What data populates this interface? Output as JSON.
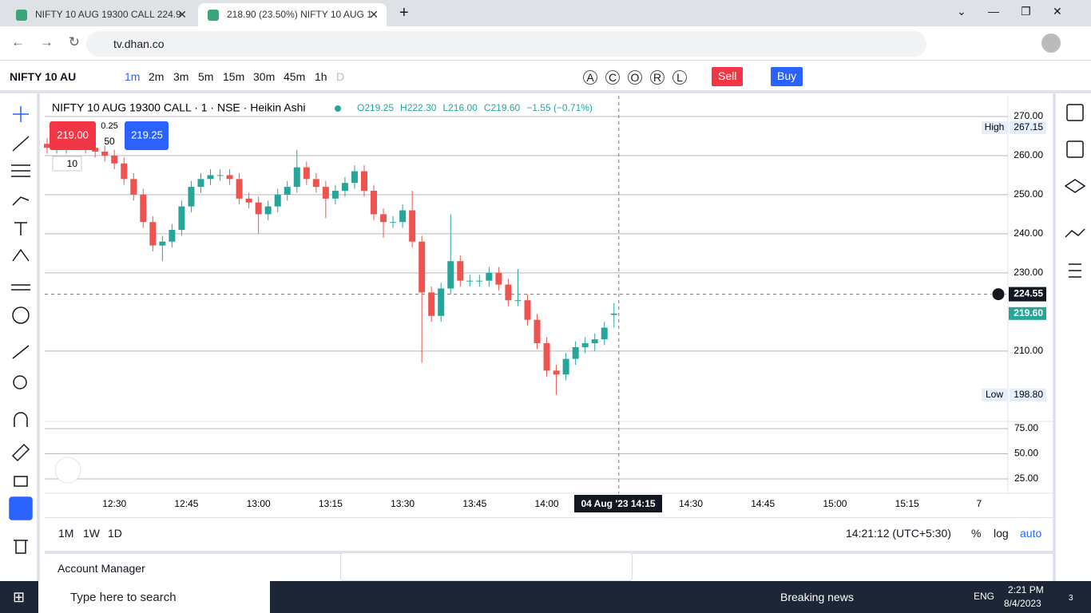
{
  "browser": {
    "tabs": [
      "NIFTY 10 AUG 19300 CALL 224.9",
      "218.90 (23.50%) NIFTY 10 AUG 1"
    ],
    "url": "tv.dhan.co"
  },
  "toolbar": {
    "symbol": "NIFTY 10 AU",
    "intervals": [
      "1m",
      "2m",
      "3m",
      "5m",
      "15m",
      "30m",
      "45m",
      "1h",
      "D"
    ],
    "letters": [
      "A",
      "C",
      "O",
      "R",
      "L"
    ],
    "sell": "Sell",
    "buy": "Buy"
  },
  "trade": {
    "bid": "219.00",
    "spread": "0.25",
    "quantity": "50",
    "ask": "219.25",
    "lots": "10"
  },
  "chart_data": {
    "type": "candlestick",
    "title": "NIFTY 10 AUG 19300 CALL · 1 · NSE · Heikin Ashi",
    "legend": [
      "O219.25",
      "H222.30",
      "L216.00",
      "C219.60",
      "−1.55 (−0.71%)"
    ],
    "up_color": "#26a69a",
    "down_color": "#ef5350",
    "x": [
      "12:16",
      "12:18",
      "12:20",
      "12:22",
      "12:24",
      "12:26",
      "12:28",
      "12:30",
      "12:32",
      "12:34",
      "12:36",
      "12:38",
      "12:40",
      "12:42",
      "12:44",
      "12:46",
      "12:48",
      "12:50",
      "12:52",
      "12:54",
      "12:56",
      "12:58",
      "13:00",
      "13:02",
      "13:04",
      "13:06",
      "13:08",
      "13:10",
      "13:12",
      "13:14",
      "13:16",
      "13:18",
      "13:20",
      "13:22",
      "13:24",
      "13:26",
      "13:28",
      "13:30",
      "13:32",
      "13:34",
      "13:36",
      "13:38",
      "13:40",
      "13:42",
      "13:44",
      "13:46",
      "13:48",
      "13:50",
      "13:52",
      "13:54",
      "13:56",
      "13:58",
      "14:00",
      "14:02",
      "14:04",
      "14:06",
      "14:08",
      "14:10",
      "14:12",
      "14:14"
    ],
    "open": [
      263,
      262,
      262,
      263,
      264,
      262,
      261,
      260,
      258,
      254,
      250,
      243,
      237,
      238,
      241,
      247,
      252,
      254,
      255,
      255,
      254,
      249,
      248,
      245,
      247,
      250,
      252,
      257,
      254,
      252,
      249,
      251,
      253,
      256,
      251,
      245,
      243,
      243,
      246,
      238,
      225,
      219,
      226,
      233,
      228,
      228,
      228,
      230,
      227,
      223,
      223,
      218,
      212,
      205,
      204,
      208,
      211,
      212,
      213,
      219.25
    ],
    "high": [
      264.5,
      263.5,
      264.5,
      265.5,
      265.5,
      263.5,
      262.5,
      261.5,
      259.5,
      255.5,
      251.5,
      244.5,
      239.5,
      242.5,
      248.5,
      253.5,
      255.5,
      256.5,
      256.5,
      256.5,
      255.5,
      250.5,
      249.5,
      248.5,
      251.5,
      253.5,
      261.5,
      258.5,
      255.5,
      253.5,
      252.5,
      254.5,
      257.5,
      257.5,
      252.5,
      246.5,
      244.5,
      247.5,
      251,
      239.5,
      226.5,
      227.5,
      245,
      234.5,
      229.5,
      229.5,
      231.5,
      231.5,
      228.5,
      231,
      224.5,
      219.5,
      213.5,
      206.5,
      209.5,
      212.5,
      213.5,
      214.5,
      217.5,
      222.3
    ],
    "low": [
      260.5,
      260.5,
      260.5,
      261.5,
      260.5,
      259.5,
      258.5,
      256.5,
      252.5,
      248.5,
      241.5,
      235.5,
      233,
      236.5,
      239.5,
      245.5,
      250.5,
      252.5,
      253.5,
      252.5,
      247.5,
      246.5,
      240,
      243.5,
      245.5,
      248.5,
      250.5,
      252.5,
      250.5,
      244,
      247.5,
      249.5,
      251.5,
      249.5,
      243.5,
      239,
      241.5,
      241.5,
      236.5,
      207,
      217.5,
      217.5,
      224.5,
      226.5,
      226.5,
      226.5,
      226.5,
      225.5,
      221.5,
      221.5,
      216.5,
      210.5,
      203.5,
      198.8,
      202.5,
      206.5,
      209.5,
      210,
      211.5,
      216
    ],
    "close": [
      262,
      262,
      263,
      264,
      262,
      261,
      260,
      258,
      254,
      250,
      243,
      237,
      238,
      241,
      247,
      252,
      254,
      255,
      255,
      254,
      249,
      248,
      245,
      247,
      250,
      252,
      257,
      254,
      252,
      249,
      251,
      253,
      256,
      251,
      245,
      243,
      243,
      246,
      238,
      225,
      219,
      226,
      233,
      228,
      228,
      228,
      230,
      227,
      223,
      223,
      218,
      212,
      205,
      204,
      208,
      211,
      212,
      213,
      216,
      219.6
    ],
    "xlim": [
      "12:16",
      "15:37"
    ],
    "xticks": [
      "12:30",
      "12:45",
      "13:00",
      "13:15",
      "13:30",
      "13:45",
      "14:00",
      "14:30",
      "14:45",
      "15:00",
      "15:15",
      {
        "value": "15:30",
        "label": "7"
      }
    ],
    "ylim": [
      192,
      275.3
    ],
    "yticks": [
      {
        "value": 270,
        "label": "270.00"
      },
      {
        "value": 260,
        "label": "260.00"
      },
      {
        "value": 250,
        "label": "250.00"
      },
      {
        "value": 240,
        "label": "240.00"
      },
      {
        "value": 230,
        "label": "230.00"
      },
      {
        "value": 210,
        "label": "210.00"
      }
    ],
    "grid": true,
    "high_marker": {
      "label": "High",
      "value": 267.15,
      "value_label": "267.15"
    },
    "low_marker": {
      "label": "Low",
      "value": 198.8,
      "value_label": "198.80"
    },
    "last_price": {
      "value": 219.6,
      "value_label": "219.60"
    },
    "crosshair": {
      "value": 224.55,
      "value_label": "224.55",
      "x": "14:15",
      "x_label": "04 Aug '23   14:15"
    },
    "y2lim": [
      10.7,
      81.3
    ],
    "y2ticks": [
      {
        "value": 75,
        "label": "75.00"
      },
      {
        "value": 50,
        "label": "50.00"
      },
      {
        "value": 25,
        "label": "25.00"
      }
    ]
  },
  "bottom_bar": {
    "ranges": [
      "1M",
      "1W",
      "1D"
    ],
    "clock": "14:21:12 (UTC+5:30)",
    "options": [
      "%",
      "log",
      "auto"
    ]
  },
  "account": {
    "title": "Account Manager"
  },
  "taskbar": {
    "search": "Type here to search",
    "news": "Breaking news",
    "language": "ENG",
    "time": "2:21 PM",
    "date": "8/4/2023",
    "badge": "3"
  }
}
